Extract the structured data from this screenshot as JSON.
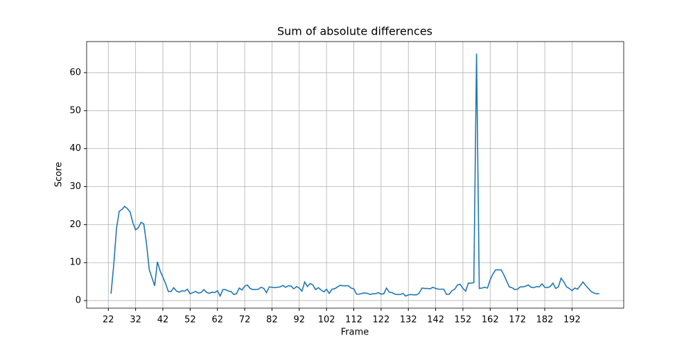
{
  "chart_data": {
    "type": "line",
    "title": "Sum of absolute differences",
    "x_label": "Frame",
    "y_label": "Score",
    "x": [
      23,
      24,
      25,
      26,
      27,
      28,
      29,
      30,
      31,
      32,
      33,
      34,
      35,
      36,
      37,
      38,
      39,
      40,
      41,
      42,
      43,
      44,
      45,
      46,
      47,
      48,
      49,
      50,
      51,
      52,
      53,
      54,
      55,
      56,
      57,
      58,
      59,
      60,
      61,
      62,
      63,
      64,
      65,
      66,
      67,
      68,
      69,
      70,
      71,
      72,
      73,
      74,
      75,
      76,
      77,
      78,
      79,
      80,
      81,
      82,
      83,
      84,
      85,
      86,
      87,
      88,
      89,
      90,
      91,
      92,
      93,
      94,
      95,
      96,
      97,
      98,
      99,
      100,
      101,
      102,
      103,
      104,
      105,
      106,
      107,
      108,
      109,
      110,
      111,
      112,
      113,
      114,
      115,
      116,
      117,
      118,
      119,
      120,
      121,
      122,
      123,
      124,
      125,
      126,
      127,
      128,
      129,
      130,
      131,
      132,
      133,
      134,
      135,
      136,
      137,
      138,
      139,
      140,
      141,
      142,
      143,
      144,
      145,
      146,
      147,
      148,
      149,
      150,
      151,
      152,
      153,
      154,
      155,
      156,
      157,
      158,
      159,
      160,
      161,
      162,
      163,
      164,
      165,
      166,
      167,
      168,
      169,
      170,
      171,
      172,
      173,
      174,
      175,
      176,
      177,
      178,
      179,
      180,
      181,
      182,
      183,
      184,
      185,
      186,
      187,
      188,
      189,
      190,
      191,
      192,
      193,
      194,
      195,
      196,
      197,
      198,
      199,
      200,
      201,
      202
    ],
    "series": [
      {
        "name": "Score",
        "color": "#1f77b4",
        "values": [
          1.8,
          9.5,
          19,
          23.5,
          24,
          24.8,
          24.2,
          23.3,
          20.5,
          18.6,
          19.2,
          20.6,
          20.2,
          15,
          8.2,
          6,
          3.9,
          10.2,
          7.8,
          6.2,
          4.5,
          2.4,
          2.4,
          3.4,
          2.5,
          2.2,
          2.6,
          2.5,
          3,
          1.8,
          2.1,
          2.4,
          2,
          2.1,
          2.9,
          2.2,
          1.9,
          2.2,
          2.1,
          2.6,
          1.2,
          2.9,
          2.9,
          2.5,
          2.4,
          1.6,
          1.8,
          3.3,
          2.8,
          3.8,
          4.1,
          3.2,
          2.9,
          2.9,
          3,
          3.5,
          3.2,
          2.1,
          3.6,
          3.5,
          3.4,
          3.5,
          3.6,
          4,
          3.5,
          3.9,
          3.8,
          3.1,
          3.7,
          3.3,
          2.5,
          4.9,
          3.7,
          4.5,
          4.1,
          2.9,
          3.4,
          2.8,
          2.3,
          3,
          1.9,
          3,
          3.1,
          3.6,
          4,
          3.9,
          3.9,
          3.9,
          3.3,
          3.1,
          1.7,
          1.7,
          1.9,
          2,
          1.9,
          1.6,
          1.8,
          1.8,
          2.1,
          1.7,
          1.8,
          3.3,
          2.2,
          2.1,
          1.7,
          1.6,
          1.6,
          1.9,
          1.2,
          1.5,
          1.6,
          1.5,
          1.5,
          2,
          3.3,
          3.2,
          3.2,
          3.1,
          3.5,
          3.2,
          3,
          3,
          3,
          1.6,
          1.7,
          2.6,
          3,
          4.1,
          4.3,
          3.2,
          2.5,
          4.6,
          4.6,
          4.7,
          65,
          3.2,
          3.3,
          3.5,
          3.3,
          5.5,
          7,
          8.1,
          8.1,
          8.1,
          6.8,
          5.2,
          3.6,
          3.4,
          2.9,
          3,
          3.6,
          3.6,
          3.8,
          4.1,
          3.5,
          3.4,
          3.7,
          3.6,
          4.4,
          3.5,
          3.4,
          3.7,
          4.6,
          3.2,
          3.6,
          5.9,
          4.9,
          3.6,
          3.2,
          2.6,
          3.3,
          3,
          3.9,
          4.9,
          4,
          3.2,
          2.4,
          2,
          1.8,
          1.8
        ]
      }
    ],
    "xlim": [
      14.05,
      210.95
    ],
    "ylim": [
      -1.99,
      68.19
    ],
    "xticks": [
      22,
      32,
      42,
      52,
      62,
      72,
      82,
      92,
      102,
      112,
      122,
      132,
      142,
      152,
      162,
      172,
      182,
      192
    ],
    "yticks": [
      0,
      10,
      20,
      30,
      40,
      50,
      60
    ],
    "grid": true
  }
}
